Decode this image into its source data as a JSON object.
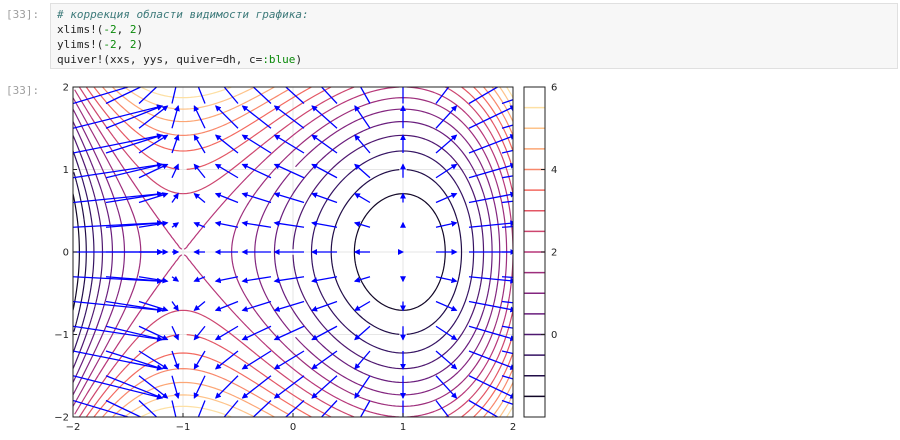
{
  "input_cell": {
    "prompt": "[33]:",
    "lines": {
      "comment": "# коррекция области видимости графика:",
      "xlims": {
        "fn": "xlims!(",
        "a": "-2",
        "sep": ", ",
        "b": "2",
        "close": ")"
      },
      "ylims": {
        "fn": "ylims!(",
        "a": "-2",
        "sep": ", ",
        "b": "2",
        "close": ")"
      },
      "quiver": {
        "pre": "quiver!(xxs, yys, quiver=dh, c=",
        "sym": ":blue",
        "close": ")"
      }
    }
  },
  "output_cell": {
    "prompt": "[33]:"
  },
  "chart_data": {
    "type": "contour+quiver",
    "function": "f(x,y) = x^3 - 3x + y^2 (contours), gradient field (arrows)",
    "x_ticks": [
      "−2",
      "−1",
      "0",
      "1",
      "2"
    ],
    "y_ticks": [
      "−2",
      "−1",
      "0",
      "1",
      "2"
    ],
    "xlim": [
      -2,
      2
    ],
    "ylim": [
      -2,
      2
    ],
    "colorbar_ticks": [
      "6",
      "4",
      "2",
      "0"
    ],
    "colorbar_range": [
      -2.0,
      6.0
    ],
    "contour_levels": [
      -1.5,
      -1.0,
      -0.5,
      0.0,
      0.5,
      1.0,
      1.5,
      2.0,
      2.5,
      3.0,
      3.5,
      4.0,
      4.5,
      5.0,
      5.5
    ],
    "quiver_color": "#0000ff",
    "colormap": [
      "#000004",
      "#2c115f",
      "#721f81",
      "#b73779",
      "#f1605d",
      "#feb078",
      "#fcfdbf"
    ],
    "grid": true
  }
}
